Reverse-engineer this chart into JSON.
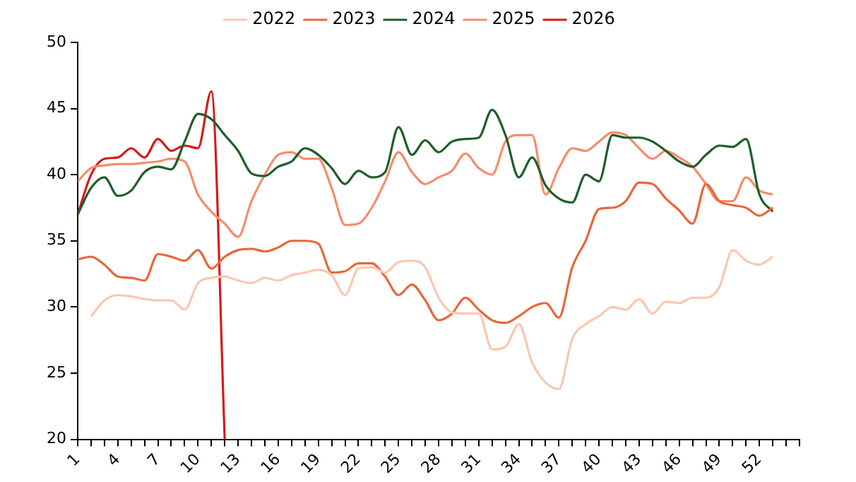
{
  "chart_data": {
    "type": "line",
    "legend": "top",
    "grid": false,
    "marker": "none",
    "line_style": "solid",
    "ylim": [
      20,
      50
    ],
    "yticks": [
      20,
      25,
      30,
      35,
      40,
      45,
      50
    ],
    "xlim": [
      1,
      55
    ],
    "xticks": [
      1,
      {
        "value": 2,
        "label": null
      },
      {
        "value": 3,
        "label": null
      },
      4,
      {
        "value": 5,
        "label": null
      },
      {
        "value": 6,
        "label": null
      },
      7,
      {
        "value": 8,
        "label": null
      },
      {
        "value": 9,
        "label": null
      },
      10,
      {
        "value": 11,
        "label": null
      },
      {
        "value": 12,
        "label": null
      },
      13,
      {
        "value": 14,
        "label": null
      },
      {
        "value": 15,
        "label": null
      },
      16,
      {
        "value": 17,
        "label": null
      },
      {
        "value": 18,
        "label": null
      },
      19,
      {
        "value": 20,
        "label": null
      },
      {
        "value": 21,
        "label": null
      },
      22,
      {
        "value": 23,
        "label": null
      },
      {
        "value": 24,
        "label": null
      },
      25,
      {
        "value": 26,
        "label": null
      },
      {
        "value": 27,
        "label": null
      },
      28,
      {
        "value": 29,
        "label": null
      },
      {
        "value": 30,
        "label": null
      },
      31,
      {
        "value": 32,
        "label": null
      },
      {
        "value": 33,
        "label": null
      },
      34,
      {
        "value": 35,
        "label": null
      },
      {
        "value": 36,
        "label": null
      },
      37,
      {
        "value": 38,
        "label": null
      },
      {
        "value": 39,
        "label": null
      },
      40,
      {
        "value": 41,
        "label": null
      },
      {
        "value": 42,
        "label": null
      },
      43,
      {
        "value": 44,
        "label": null
      },
      {
        "value": 45,
        "label": null
      },
      46,
      {
        "value": 47,
        "label": null
      },
      {
        "value": 48,
        "label": null
      },
      49,
      {
        "value": 50,
        "label": null
      },
      {
        "value": 51,
        "label": null
      },
      52,
      {
        "value": 53,
        "label": null
      },
      {
        "value": 54,
        "label": null
      },
      {
        "value": 55,
        "label": null
      }
    ],
    "x": [
      1,
      2,
      3,
      4,
      5,
      6,
      7,
      8,
      9,
      10,
      11,
      12,
      13,
      14,
      15,
      16,
      17,
      18,
      19,
      20,
      21,
      22,
      23,
      24,
      25,
      26,
      27,
      28,
      29,
      30,
      31,
      32,
      33,
      34,
      35,
      36,
      37,
      38,
      39,
      40,
      41,
      42,
      43,
      44,
      45,
      46,
      47,
      48,
      49,
      50,
      51,
      52,
      53
    ],
    "series": [
      {
        "name": "2022",
        "color": "#f9c8b0",
        "values": [
          null,
          29.3,
          30.5,
          30.9,
          30.8,
          30.6,
          30.5,
          30.5,
          29.8,
          31.8,
          32.2,
          32.3,
          32.0,
          31.8,
          32.2,
          32.0,
          32.4,
          32.6,
          32.8,
          32.4,
          30.9,
          32.9,
          33.0,
          32.6,
          33.4,
          33.5,
          33.0,
          30.7,
          29.6,
          29.5,
          29.5,
          26.8,
          27.0,
          28.7,
          25.8,
          24.3,
          23.8,
          27.6,
          28.7,
          29.3,
          30.0,
          29.8,
          30.6,
          29.5,
          30.4,
          30.3,
          30.7,
          30.7,
          31.5,
          34.3,
          33.5,
          33.2,
          33.8
        ]
      },
      {
        "name": "2023",
        "color": "#e8673a",
        "values": [
          33.6,
          33.8,
          33.2,
          32.3,
          32.2,
          32.0,
          34.0,
          33.8,
          33.5,
          34.3,
          32.9,
          33.8,
          34.3,
          34.4,
          34.2,
          34.5,
          35.0,
          35.0,
          34.8,
          32.6,
          32.7,
          33.3,
          33.3,
          32.3,
          30.9,
          31.7,
          30.5,
          29.0,
          29.5,
          30.7,
          29.8,
          29.0,
          28.8,
          29.3,
          30.0,
          30.3,
          29.2,
          33.0,
          35.0,
          37.4,
          37.5,
          38.0,
          39.4,
          39.3,
          38.2,
          37.3,
          36.3,
          39.3,
          38.0,
          37.7,
          37.5,
          36.9,
          37.5
        ]
      },
      {
        "name": "2024",
        "color": "#1e5e28",
        "values": [
          37.0,
          39.0,
          39.8,
          38.4,
          38.8,
          40.2,
          40.6,
          40.4,
          42.5,
          44.6,
          44.2,
          43.0,
          41.8,
          40.1,
          39.9,
          40.6,
          41.0,
          42.0,
          41.5,
          40.5,
          39.3,
          40.3,
          39.8,
          40.2,
          43.6,
          41.5,
          42.6,
          41.7,
          42.5,
          42.7,
          42.8,
          44.9,
          43.0,
          39.8,
          41.3,
          39.2,
          38.2,
          37.9,
          40.0,
          39.5,
          43.0,
          42.8,
          42.8,
          42.5,
          41.8,
          41.0,
          40.6,
          41.5,
          42.2,
          42.1,
          42.7,
          38.5,
          37.2
        ]
      },
      {
        "name": "2025",
        "color": "#f68c6c",
        "values": [
          39.5,
          40.5,
          40.7,
          40.8,
          40.8,
          40.9,
          41.0,
          41.2,
          41.0,
          38.5,
          37.2,
          36.3,
          35.3,
          38.0,
          40.0,
          41.5,
          41.7,
          41.2,
          41.2,
          39.0,
          36.2,
          36.3,
          37.5,
          39.5,
          41.7,
          40.2,
          39.3,
          39.8,
          40.3,
          41.6,
          40.5,
          40.0,
          42.5,
          43.0,
          43.0,
          38.5,
          40.5,
          42.0,
          41.8,
          42.5,
          43.2,
          43.0,
          42.0,
          41.2,
          41.8,
          41.3,
          40.6,
          39.3,
          38.0,
          38.0,
          39.8,
          38.8,
          38.5
        ]
      },
      {
        "name": "2026",
        "color": "#d7191c",
        "values": [
          37.0,
          40.0,
          41.2,
          41.3,
          42.0,
          41.3,
          42.7,
          41.8,
          42.2,
          42.0,
          46.3,
          20,
          null,
          null,
          null,
          null,
          null,
          null,
          null,
          null,
          null,
          null,
          null,
          null,
          null,
          null,
          null,
          null,
          null,
          null,
          null,
          null,
          null,
          null,
          null,
          null,
          null,
          null,
          null,
          null,
          null,
          null,
          null,
          null,
          null,
          null,
          null,
          null,
          null,
          null,
          null,
          null,
          null
        ]
      }
    ]
  }
}
